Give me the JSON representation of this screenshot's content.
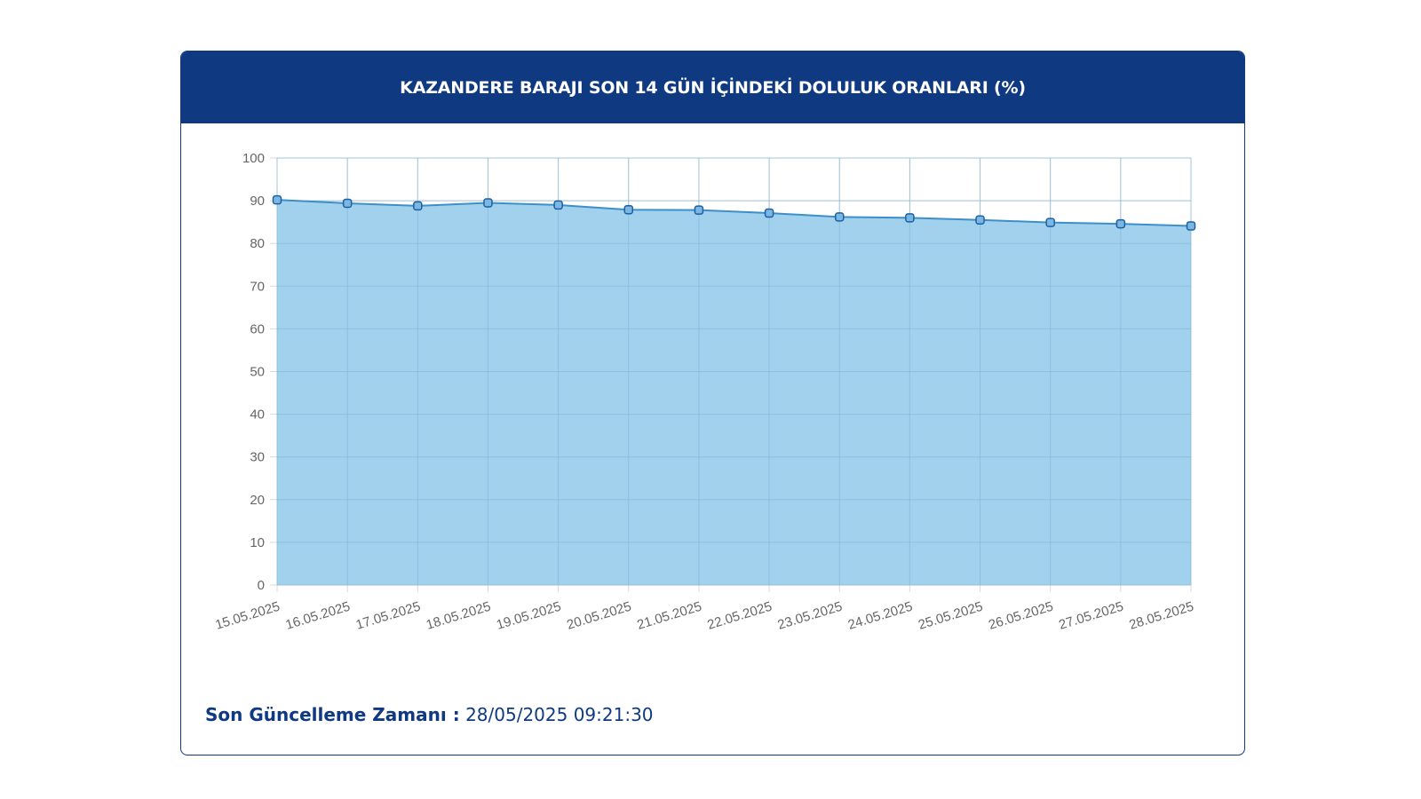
{
  "header": {
    "title": "KAZANDERE BARAJI SON 14 GÜN İÇİNDEKİ DOLULUK ORANLARI (%)"
  },
  "footer": {
    "label": "Son Güncelleme Zamanı :",
    "value": "28/05/2025 09:21:30"
  },
  "colors": {
    "header_bg": "#0f3a82",
    "fill": "#9dcfec",
    "line": "#3d8fc7",
    "marker_fill": "#7ab7e2",
    "marker_stroke": "#1d5fa3",
    "grid": "#d9d9d9",
    "tick_text": "#666666"
  },
  "chart_data": {
    "type": "area",
    "title": "KAZANDERE BARAJI SON 14 GÜN İÇİNDEKİ DOLULUK ORANLARI (%)",
    "xlabel": "",
    "ylabel": "",
    "ylim": [
      0,
      100
    ],
    "yticks": [
      0,
      10,
      20,
      30,
      40,
      50,
      60,
      70,
      80,
      90,
      100
    ],
    "grid": true,
    "legend": "none",
    "categories": [
      "15.05.2025",
      "16.05.2025",
      "17.05.2025",
      "18.05.2025",
      "19.05.2025",
      "20.05.2025",
      "21.05.2025",
      "22.05.2025",
      "23.05.2025",
      "24.05.2025",
      "25.05.2025",
      "26.05.2025",
      "27.05.2025",
      "28.05.2025"
    ],
    "series": [
      {
        "values": [
          90.2,
          89.4,
          88.8,
          89.5,
          89.0,
          87.9,
          87.8,
          87.1,
          86.2,
          86.0,
          85.5,
          84.9,
          84.6,
          84.1
        ]
      }
    ]
  }
}
